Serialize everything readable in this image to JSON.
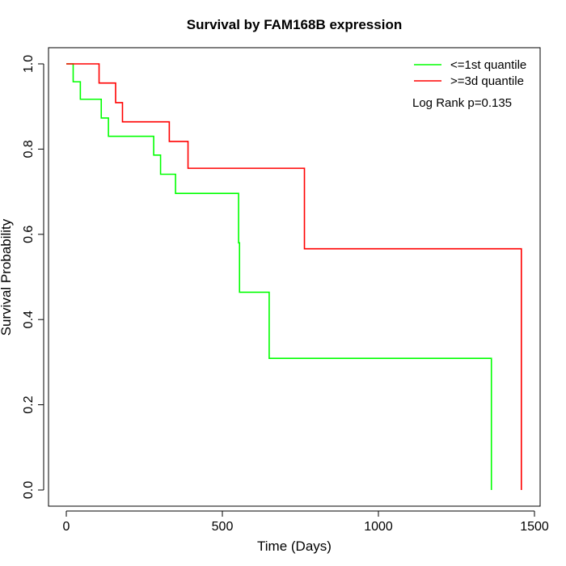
{
  "chart_data": {
    "type": "line",
    "step": true,
    "title": "Survival by FAM168B expression",
    "xlabel": "Time (Days)",
    "ylabel": "Survival Probability",
    "xlim": [
      0,
      1500
    ],
    "ylim": [
      0,
      1.0
    ],
    "x_ticks": [
      0,
      500,
      1000,
      1500
    ],
    "x_tick_labels": [
      "0",
      "500",
      "1000",
      "1500"
    ],
    "y_ticks": [
      0.0,
      0.2,
      0.4,
      0.6,
      0.8,
      1.0
    ],
    "y_tick_labels": [
      "0.0",
      "0.2",
      "0.4",
      "0.6",
      "0.8",
      "1.0"
    ],
    "grid": false,
    "legend_position": "top-right",
    "annotation": "Log Rank p=0.135",
    "series": [
      {
        "name": "<=1st quantile",
        "color": "#00ff00",
        "x": [
          0,
          22,
          45,
          112,
          135,
          280,
          302,
          350,
          552,
          555,
          650,
          1362,
          1362
        ],
        "y": [
          1.0,
          0.958,
          0.917,
          0.873,
          0.83,
          0.786,
          0.741,
          0.696,
          0.58,
          0.464,
          0.309,
          0.309,
          0.0
        ]
      },
      {
        "name": ">=3d quantile",
        "color": "#ff0000",
        "x": [
          0,
          105,
          158,
          180,
          330,
          390,
          763,
          1458,
          1458
        ],
        "y": [
          1.0,
          0.955,
          0.909,
          0.864,
          0.818,
          0.755,
          0.566,
          0.566,
          0.0
        ]
      }
    ]
  }
}
